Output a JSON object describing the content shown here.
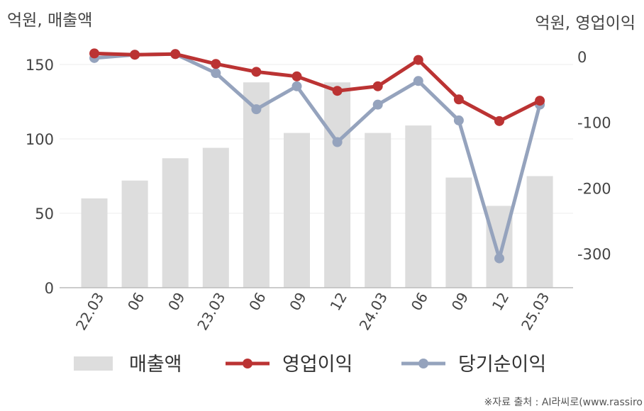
{
  "chart_data": {
    "type": "bar+line",
    "categories": [
      "22.03",
      "06",
      "09",
      "23.03",
      "06",
      "09",
      "12",
      "24.03",
      "06",
      "09",
      "12",
      "25.03"
    ],
    "left_axis": {
      "unit_label": "억원, 매출액",
      "ticks": [
        0,
        50,
        100,
        150
      ],
      "ylim": [
        0,
        160
      ]
    },
    "right_axis": {
      "unit_label": "억원, 영업이익",
      "ticks": [
        0,
        -100,
        -200,
        -300
      ],
      "ylim": [
        -355,
        10
      ]
    },
    "series": [
      {
        "name": "매출액",
        "type": "bar",
        "axis": "left",
        "color": "#dddddd",
        "values": [
          60,
          72,
          87,
          94,
          138,
          104,
          138,
          104,
          109,
          74,
          55,
          75
        ]
      },
      {
        "name": "영업이익",
        "type": "line",
        "axis": "right",
        "color": "#bb3333",
        "values": [
          5,
          3,
          4,
          -11,
          -23,
          -30,
          -52,
          -45,
          -5,
          -65,
          -98,
          -67
        ]
      },
      {
        "name": "당기순이익",
        "type": "line",
        "axis": "right",
        "color": "#95a3bd",
        "values": [
          -2,
          3,
          4,
          -25,
          -80,
          -45,
          -130,
          -73,
          -37,
          -97,
          -307,
          -73
        ]
      }
    ],
    "legend_position": "bottom",
    "grid": "horizontal",
    "source": "※자료 출처 : AI라씨로(www.rassiro"
  }
}
